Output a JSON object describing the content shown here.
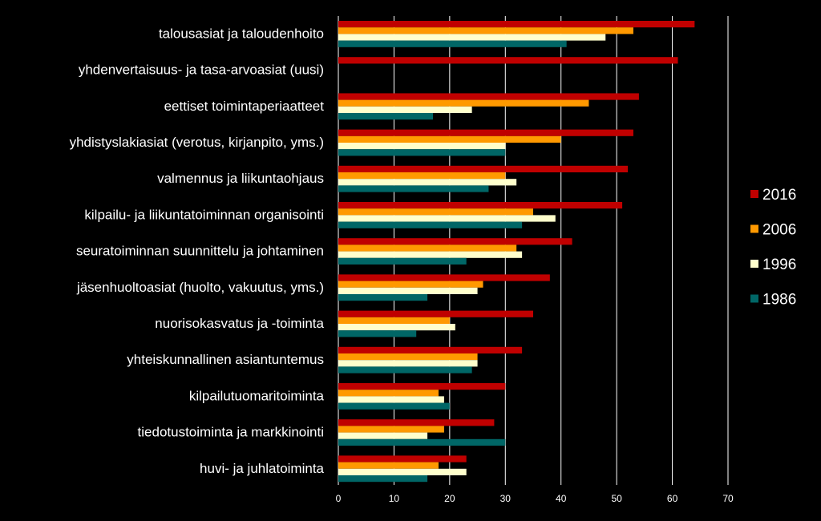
{
  "chart_data": {
    "type": "bar",
    "orientation": "horizontal",
    "title": "",
    "xlabel": "",
    "ylabel": "",
    "xlim": [
      0,
      70
    ],
    "xticks": [
      "0",
      "10",
      "20",
      "30",
      "40",
      "50",
      "60",
      "70"
    ],
    "grid": "vertical gridlines",
    "legend_position": "right",
    "categories": [
      "talousasiat ja taloudenhoito",
      "yhdenvertaisuus- ja tasa-arvoasiat (uusi)",
      "eettiset toimintaperiaatteet",
      "yhdistyslakiasiat (verotus, kirjanpito, yms.)",
      "valmennus ja liikuntaohjaus",
      "kilpailu- ja liikuntatoiminnan organisointi",
      "seuratoiminnan suunnittelu ja johtaminen",
      "jäsenhuoltoasiat (huolto, vakuutus, yms.)",
      "nuorisokasvatus ja -toiminta",
      "yhteiskunnallinen asiantuntemus",
      "kilpailutuomaritoiminta",
      "tiedotustoiminta ja markkinointi",
      "huvi- ja juhlatoiminta"
    ],
    "series": [
      {
        "name": "2016",
        "color": "#C00000",
        "values": [
          64,
          61,
          54,
          53,
          52,
          51,
          42,
          38,
          35,
          33,
          30,
          28,
          23
        ]
      },
      {
        "name": "2006",
        "color": "#FF9900",
        "values": [
          53,
          null,
          45,
          40,
          30,
          35,
          32,
          26,
          20,
          25,
          18,
          19,
          18
        ]
      },
      {
        "name": "1996",
        "color": "#FFFFCC",
        "values": [
          48,
          null,
          24,
          30,
          32,
          39,
          33,
          25,
          21,
          25,
          19,
          16,
          23
        ]
      },
      {
        "name": "1986",
        "color": "#006666",
        "values": [
          41,
          null,
          17,
          30,
          27,
          33,
          23,
          16,
          14,
          24,
          20,
          30,
          16
        ]
      }
    ]
  }
}
